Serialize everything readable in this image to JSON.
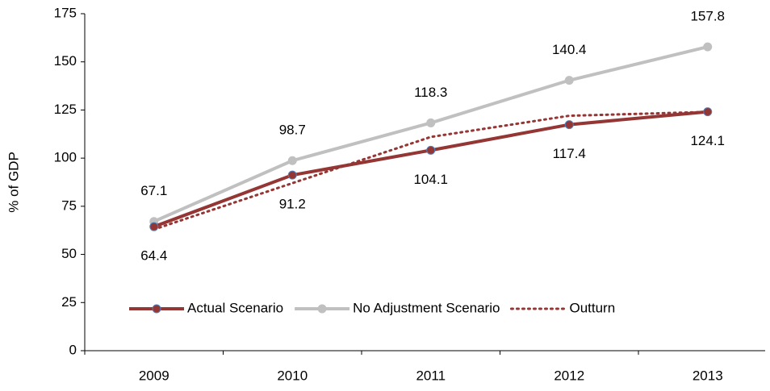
{
  "chart_data": {
    "type": "line",
    "y_label": "% of GDP",
    "categories": [
      "2009",
      "2010",
      "2011",
      "2012",
      "2013"
    ],
    "series": [
      {
        "name": "Actual Scenario",
        "color": "#943634",
        "values": [
          64.4,
          91.2,
          104.1,
          117.4,
          124.1
        ],
        "style": "solid",
        "marker": true
      },
      {
        "name": "No Adjustment Scenario",
        "color": "#c0c0c0",
        "values": [
          67.1,
          98.7,
          118.3,
          140.4,
          157.8
        ],
        "style": "solid",
        "marker": true
      },
      {
        "name": "Outturn",
        "color": "#943634",
        "values": [
          63,
          87,
          111,
          122,
          124
        ],
        "style": "dotted",
        "marker": false
      }
    ],
    "ylim": [
      0,
      175
    ],
    "yticks": [
      0,
      25,
      50,
      75,
      100,
      125,
      150,
      175
    ],
    "grid": false,
    "legend": "bottom"
  }
}
